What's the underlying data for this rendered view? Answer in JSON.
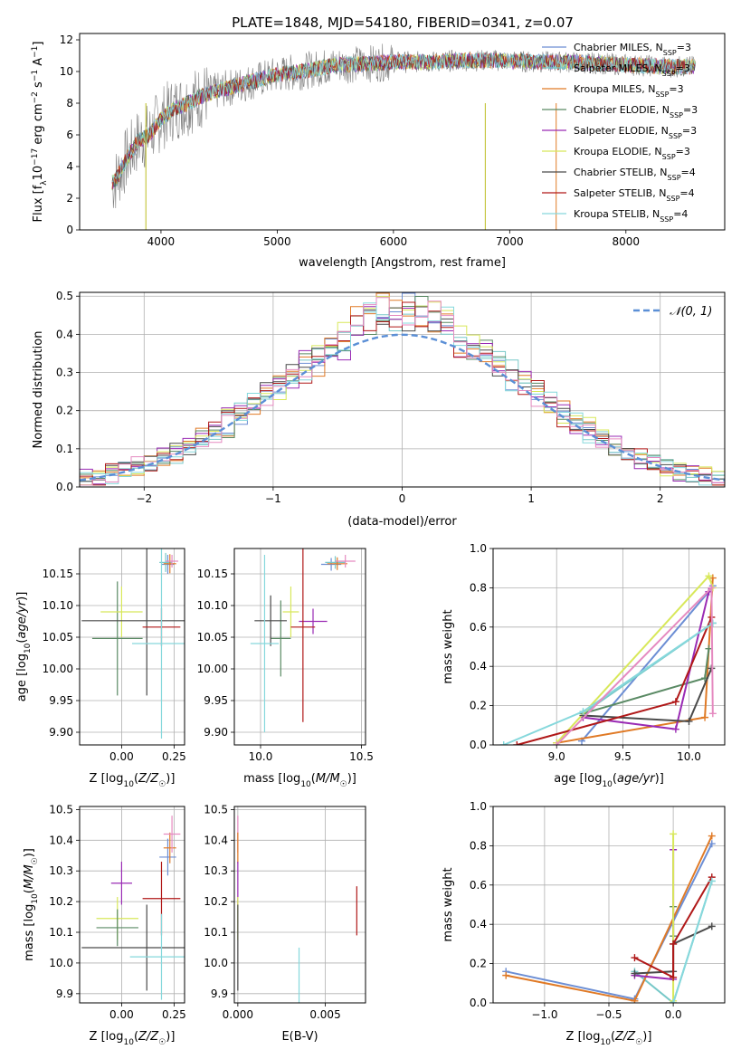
{
  "figure_title": "PLATE=1848, MJD=54180, FIBERID=0341, z=0.07",
  "models": [
    {
      "name": "Chabrier MILES, N_SSP=3",
      "base": "Chabrier MILES, N",
      "sub": "SSP",
      "tail": "=3",
      "color": "#6c8ed4"
    },
    {
      "name": "Salpeter MILES, N_SSP=3",
      "base": "Salpeter MILES, N",
      "sub": "SSP",
      "tail": "=3",
      "color": "#77c8c8"
    },
    {
      "name": "Kroupa MILES, N_SSP=3",
      "base": "Kroupa MILES, N",
      "sub": "SSP",
      "tail": "=3",
      "color": "#e07a26"
    },
    {
      "name": "Chabrier ELODIE, N_SSP=3",
      "base": "Chabrier ELODIE, N",
      "sub": "SSP",
      "tail": "=3",
      "color": "#5a8a64"
    },
    {
      "name": "Salpeter ELODIE, N_SSP=3",
      "base": "Salpeter ELODIE, N",
      "sub": "SSP",
      "tail": "=3",
      "color": "#9a2bb4"
    },
    {
      "name": "Kroupa ELODIE, N_SSP=3",
      "base": "Kroupa ELODIE, N",
      "sub": "SSP",
      "tail": "=3",
      "color": "#d8e85a"
    },
    {
      "name": "Chabrier STELIB, N_SSP=4",
      "base": "Chabrier STELIB, N",
      "sub": "SSP",
      "tail": "=4",
      "color": "#4a4a4a"
    },
    {
      "name": "Salpeter STELIB, N_SSP=4",
      "base": "Salpeter STELIB, N",
      "sub": "SSP",
      "tail": "=4",
      "color": "#b01818"
    },
    {
      "name": "Kroupa STELIB, N_SSP=4",
      "base": "Kroupa STELIB, N",
      "sub": "SSP",
      "tail": "=4",
      "color": "#86d8dc"
    }
  ],
  "extra_colors": {
    "pink": "#e58ac0",
    "olive": "#bcbd22",
    "data_gray": "#808080",
    "gaussian": "#5b8fd6"
  },
  "chart_data": [
    {
      "id": "spectrum",
      "type": "line",
      "title": "PLATE=1848, MJD=54180, FIBERID=0341, z=0.07",
      "xlabel": "wavelength [Angstrom, rest frame]",
      "ylabel_parts": [
        "Flux [f",
        "λ",
        "10",
        "−17",
        " erg cm",
        "−2",
        " s",
        "−1",
        " A",
        "−1",
        "]"
      ],
      "xlim": [
        3300,
        8850
      ],
      "ylim": [
        0,
        12.4
      ],
      "xticks": [
        4000,
        5000,
        6000,
        7000,
        8000
      ],
      "yticks": [
        0,
        2,
        4,
        6,
        8,
        10,
        12
      ],
      "continuum": {
        "x": [
          3600,
          3700,
          3800,
          3900,
          4000,
          4100,
          4200,
          4400,
          4600,
          4800,
          5000,
          5200,
          5500,
          5800,
          6000,
          6300,
          6600,
          6900,
          7200,
          7500,
          7800,
          8100,
          8400,
          8600
        ],
        "y": [
          3.0,
          4.4,
          5.6,
          6.0,
          7.0,
          7.6,
          7.9,
          8.6,
          9.0,
          9.4,
          9.8,
          10.0,
          10.4,
          10.5,
          10.6,
          10.6,
          10.7,
          10.7,
          10.6,
          10.6,
          10.5,
          10.4,
          10.3,
          10.3
        ]
      }
    },
    {
      "id": "residuals",
      "type": "histogram",
      "xlabel": "(data-model)/error",
      "ylabel": "Normed distribution",
      "xlim": [
        -2.5,
        2.5
      ],
      "ylim": [
        0,
        0.51
      ],
      "xticks": [
        -2,
        -1,
        0,
        1,
        2
      ],
      "yticks": [
        0,
        0.1,
        0.2,
        0.3,
        0.4,
        0.5
      ],
      "bin_width": 0.1,
      "legend_label": "𝒩(0, 1)",
      "legend_position": "upper right"
    },
    {
      "id": "age_vs_Z",
      "type": "scatter",
      "xlabel": "Z [log10(Z/Z☉)]",
      "ylabel": "age [log10(age/yr)]",
      "xlim": [
        -0.2,
        0.3
      ],
      "ylim": [
        9.88,
        10.19
      ],
      "xticks": [
        0.0,
        0.25
      ],
      "yticks": [
        9.9,
        9.95,
        10.0,
        10.05,
        10.1,
        10.15
      ],
      "points": [
        {
          "color": "#6c8ed4",
          "x": 0.22,
          "y": 10.165,
          "xerr": 0.03,
          "yerr": 0.015
        },
        {
          "color": "#77c8c8",
          "x": 0.21,
          "y": 10.168,
          "xerr": 0.03,
          "yerr": 0.015
        },
        {
          "color": "#e07a26",
          "x": 0.23,
          "y": 10.166,
          "xerr": 0.03,
          "yerr": 0.015
        },
        {
          "color": "#e58ac0",
          "x": 0.24,
          "y": 10.17,
          "xerr": 0.03,
          "yerr": 0.01
        },
        {
          "color": "#5a8a64",
          "x": -0.02,
          "y": 10.048,
          "xerr": 0.12,
          "yerr": 0.09
        },
        {
          "color": "#d8e85a",
          "x": 0.0,
          "y": 10.09,
          "xerr": 0.1,
          "yerr": 0.04
        },
        {
          "color": "#4a4a4a",
          "x": 0.12,
          "y": 10.076,
          "xerr": 0.31,
          "yerr": 0.118
        },
        {
          "color": "#b01818",
          "x": 0.19,
          "y": 10.066,
          "xerr": 0.09,
          "yerr": 0.03
        },
        {
          "color": "#86d8dc",
          "x": 0.19,
          "y": 10.04,
          "xerr": 0.14,
          "yerr": 0.15
        }
      ]
    },
    {
      "id": "age_vs_mass",
      "type": "scatter",
      "xlabel": "mass [log10(M/M☉)]",
      "ylabel": "",
      "xlim": [
        9.87,
        10.52
      ],
      "ylim": [
        9.88,
        10.19
      ],
      "xticks": [
        10.0,
        10.5
      ],
      "yticks": [
        9.9,
        9.95,
        10.0,
        10.05,
        10.1,
        10.15
      ],
      "points": [
        {
          "color": "#6c8ed4",
          "x": 10.35,
          "y": 10.165,
          "xerr": 0.05,
          "yerr": 0.01
        },
        {
          "color": "#77c8c8",
          "x": 10.37,
          "y": 10.168,
          "xerr": 0.05,
          "yerr": 0.01
        },
        {
          "color": "#e07a26",
          "x": 10.38,
          "y": 10.166,
          "xerr": 0.05,
          "yerr": 0.01
        },
        {
          "color": "#e58ac0",
          "x": 10.42,
          "y": 10.17,
          "xerr": 0.05,
          "yerr": 0.01
        },
        {
          "color": "#5a8a64",
          "x": 10.1,
          "y": 10.048,
          "xerr": 0.05,
          "yerr": 0.06
        },
        {
          "color": "#d8e85a",
          "x": 10.15,
          "y": 10.09,
          "xerr": 0.04,
          "yerr": 0.04
        },
        {
          "color": "#9a2bb4",
          "x": 10.26,
          "y": 10.075,
          "xerr": 0.07,
          "yerr": 0.02
        },
        {
          "color": "#4a4a4a",
          "x": 10.05,
          "y": 10.076,
          "xerr": 0.08,
          "yerr": 0.04
        },
        {
          "color": "#b01818",
          "x": 10.21,
          "y": 10.066,
          "xerr": 0.06,
          "yerr": 0.15
        },
        {
          "color": "#86d8dc",
          "x": 10.02,
          "y": 10.04,
          "xerr": 0.07,
          "yerr": 0.14
        }
      ]
    },
    {
      "id": "massweight_vs_age",
      "type": "line",
      "xlabel": "age [log10(age/yr)]",
      "ylabel": "mass weight",
      "xlim": [
        8.52,
        10.27
      ],
      "ylim": [
        0,
        1.0
      ],
      "xticks": [
        9.0,
        9.5,
        10.0
      ],
      "yticks": [
        0,
        0.2,
        0.4,
        0.6,
        0.8,
        1.0
      ],
      "series": [
        {
          "color": "#6c8ed4",
          "x": [
            9.19,
            10.15,
            10.18
          ],
          "y": [
            0.02,
            0.78,
            0.81
          ]
        },
        {
          "color": "#77c8c8",
          "x": [
            9.2,
            10.18,
            10.18
          ],
          "y": [
            0.16,
            0.62,
            0.62
          ]
        },
        {
          "color": "#e07a26",
          "x": [
            9.0,
            10.12,
            10.18
          ],
          "y": [
            0.01,
            0.14,
            0.85
          ]
        },
        {
          "color": "#5a8a64",
          "x": [
            9.2,
            10.12,
            10.15
          ],
          "y": [
            0.16,
            0.34,
            0.49
          ]
        },
        {
          "color": "#9a2bb4",
          "x": [
            9.2,
            9.9,
            10.15
          ],
          "y": [
            0.14,
            0.08,
            0.78
          ]
        },
        {
          "color": "#d8e85a",
          "x": [
            9.0,
            10.15,
            10.18
          ],
          "y": [
            0.01,
            0.86,
            0.8
          ]
        },
        {
          "color": "#4a4a4a",
          "x": [
            9.2,
            10.0,
            10.17
          ],
          "y": [
            0.15,
            0.12,
            0.39
          ]
        },
        {
          "color": "#b01818",
          "x": [
            8.7,
            9.9,
            10.17
          ],
          "y": [
            0.0,
            0.22,
            0.65
          ]
        },
        {
          "color": "#86d8dc",
          "x": [
            8.6,
            9.2,
            10.18
          ],
          "y": [
            0.0,
            0.17,
            0.62
          ]
        },
        {
          "color": "#e58ac0",
          "x": [
            9.0,
            10.17,
            10.18
          ],
          "y": [
            0.0,
            0.8,
            0.16
          ]
        }
      ]
    },
    {
      "id": "mass_vs_Z",
      "type": "scatter",
      "xlabel": "Z [log10(Z/Z☉)]",
      "ylabel": "mass [log10(M/M☉)]",
      "xlim": [
        -0.2,
        0.3
      ],
      "ylim": [
        9.87,
        10.51
      ],
      "xticks": [
        0.0,
        0.25
      ],
      "yticks": [
        9.9,
        10.0,
        10.1,
        10.2,
        10.3,
        10.4,
        10.5
      ],
      "points": [
        {
          "color": "#6c8ed4",
          "x": 0.22,
          "y": 10.345,
          "xerr": 0.04,
          "yerr": 0.06
        },
        {
          "color": "#e07a26",
          "x": 0.23,
          "y": 10.375,
          "xerr": 0.03,
          "yerr": 0.05
        },
        {
          "color": "#e58ac0",
          "x": 0.24,
          "y": 10.42,
          "xerr": 0.04,
          "yerr": 0.06
        },
        {
          "color": "#9a2bb4",
          "x": 0.0,
          "y": 10.26,
          "xerr": 0.05,
          "yerr": 0.07
        },
        {
          "color": "#b01818",
          "x": 0.19,
          "y": 10.21,
          "xerr": 0.09,
          "yerr": 0.12
        },
        {
          "color": "#d8e85a",
          "x": -0.02,
          "y": 10.145,
          "xerr": 0.1,
          "yerr": 0.07
        },
        {
          "color": "#5a8a64",
          "x": -0.02,
          "y": 10.115,
          "xerr": 0.1,
          "yerr": 0.06
        },
        {
          "color": "#4a4a4a",
          "x": 0.12,
          "y": 10.05,
          "xerr": 0.31,
          "yerr": 0.14
        },
        {
          "color": "#86d8dc",
          "x": 0.19,
          "y": 10.02,
          "xerr": 0.15,
          "yerr": 0.14
        }
      ]
    },
    {
      "id": "mass_vs_EBV",
      "type": "scatter",
      "xlabel": "E(B-V)",
      "ylabel": "",
      "xlim": [
        -0.0002,
        0.0073
      ],
      "ylim": [
        9.87,
        10.51
      ],
      "xticks": [
        0.0,
        0.005
      ],
      "yticks": [
        9.9,
        10.0,
        10.1,
        10.2,
        10.3,
        10.4,
        10.5
      ],
      "points": [
        {
          "color": "#e58ac0",
          "x": 0.0,
          "y": 10.42,
          "xerr": 0,
          "yerr": 0.06
        },
        {
          "color": "#e07a26",
          "x": 0.0,
          "y": 10.375,
          "xerr": 0,
          "yerr": 0.05
        },
        {
          "color": "#9a2bb4",
          "x": 0.0,
          "y": 10.26,
          "xerr": 0,
          "yerr": 0.07
        },
        {
          "color": "#d8e85a",
          "x": 0.0,
          "y": 10.145,
          "xerr": 0,
          "yerr": 0.07
        },
        {
          "color": "#4a4a4a",
          "x": 0.0,
          "y": 10.05,
          "xerr": 0,
          "yerr": 0.14
        },
        {
          "color": "#b01818",
          "x": 0.0068,
          "y": 10.17,
          "xerr": 0,
          "yerr": 0.08
        },
        {
          "color": "#86d8dc",
          "x": 0.0035,
          "y": 9.96,
          "xerr": 0,
          "yerr": 0.09
        }
      ]
    },
    {
      "id": "massweight_vs_Z",
      "type": "line",
      "xlabel": "Z [log10(Z/Z☉)]",
      "ylabel": "mass weight",
      "xlim": [
        -1.4,
        0.4
      ],
      "ylim": [
        0,
        1.0
      ],
      "xticks": [
        -1.0,
        -0.5,
        0.0
      ],
      "yticks": [
        0,
        0.2,
        0.4,
        0.6,
        0.8,
        1.0
      ],
      "series": [
        {
          "color": "#6c8ed4",
          "x": [
            -1.3,
            -0.3,
            0.3
          ],
          "y": [
            0.16,
            0.02,
            0.81
          ]
        },
        {
          "color": "#77c8c8",
          "x": [
            -0.3,
            0.0,
            0.3
          ],
          "y": [
            0.16,
            0.0,
            0.62
          ]
        },
        {
          "color": "#e07a26",
          "x": [
            -1.3,
            -0.3,
            0.3
          ],
          "y": [
            0.14,
            0.01,
            0.85
          ]
        },
        {
          "color": "#5a8a64",
          "x": [
            0.0,
            0.0
          ],
          "y": [
            0.34,
            0.49
          ]
        },
        {
          "color": "#9a2bb4",
          "x": [
            -0.3,
            0.0,
            0.0
          ],
          "y": [
            0.14,
            0.12,
            0.78
          ]
        },
        {
          "color": "#d8e85a",
          "x": [
            0.0,
            0.0
          ],
          "y": [
            0.01,
            0.86
          ]
        },
        {
          "color": "#4a4a4a",
          "x": [
            -0.3,
            0.0,
            0.0,
            0.3
          ],
          "y": [
            0.15,
            0.16,
            0.3,
            0.39
          ]
        },
        {
          "color": "#b01818",
          "x": [
            -0.3,
            0.0,
            0.0,
            0.3
          ],
          "y": [
            0.23,
            0.13,
            0.3,
            0.64
          ]
        },
        {
          "color": "#86d8dc",
          "x": [
            0.0,
            0.3
          ],
          "y": [
            0.0,
            0.62
          ]
        }
      ]
    }
  ]
}
